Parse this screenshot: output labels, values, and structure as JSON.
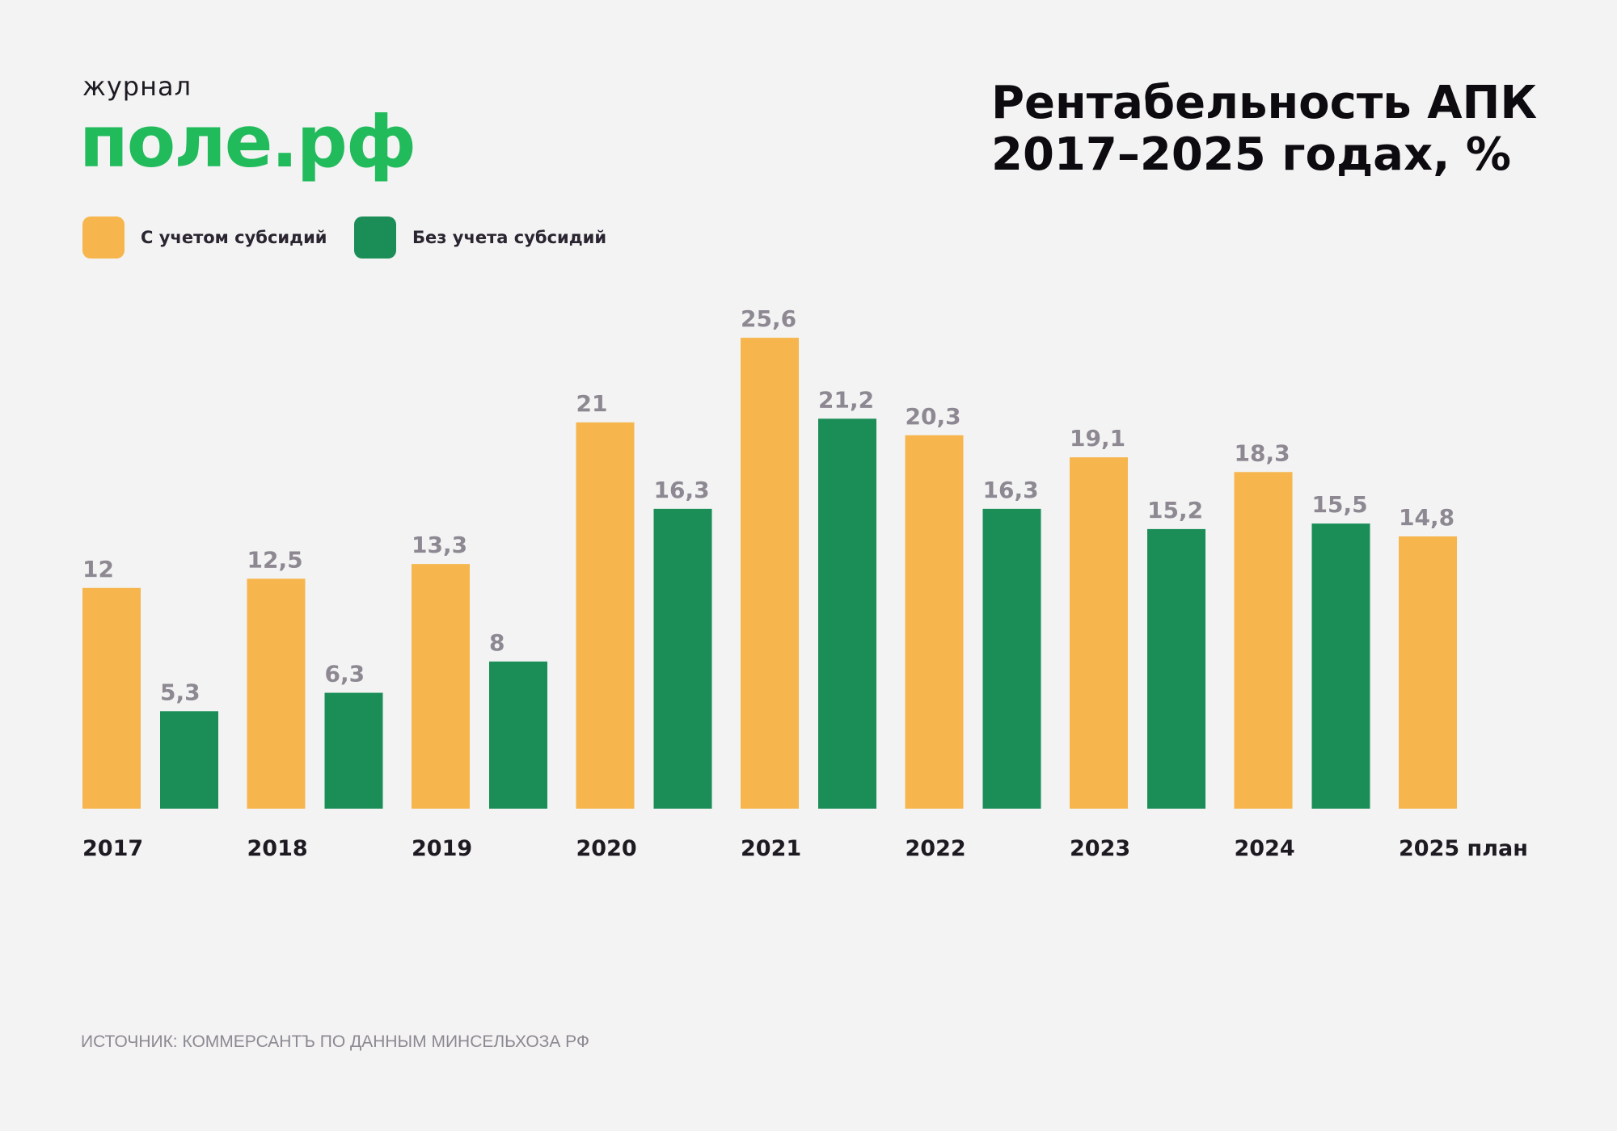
{
  "logo": {
    "top": "журнал",
    "main": "поле.рф"
  },
  "chart_data": {
    "type": "bar",
    "title": "Рентабельность АПК\n2017–2025 годах, %",
    "categories": [
      "2017",
      "2018",
      "2019",
      "2020",
      "2021",
      "2022",
      "2023",
      "2024",
      "2025 план"
    ],
    "series": [
      {
        "name": "С учетом субсидий",
        "color": "#f6b64d",
        "values": [
          12,
          12.5,
          13.3,
          21,
          25.6,
          20.3,
          19.1,
          18.3,
          14.8
        ]
      },
      {
        "name": "Без учета субсидий",
        "color": "#1b8e58",
        "values": [
          5.3,
          6.3,
          8,
          16.3,
          21.2,
          16.3,
          15.2,
          15.5,
          null
        ]
      }
    ],
    "value_labels": [
      [
        "12",
        "12,5",
        "13,3",
        "21",
        "25,6",
        "20,3",
        "19,1",
        "18,3",
        "14,8"
      ],
      [
        "5,3",
        "6,3",
        "8",
        "16,3",
        "21,2",
        "16,3",
        "15,2",
        "15,5",
        null
      ]
    ],
    "xlabel": "",
    "ylabel": "",
    "ylim": [
      0,
      25.6
    ],
    "grid": false,
    "legend_position": "top-left"
  },
  "source": "ИСТОЧНИК: КОММЕРСАНТЪ ПО ДАННЫМ МИНСЕЛЬХОЗА РФ"
}
